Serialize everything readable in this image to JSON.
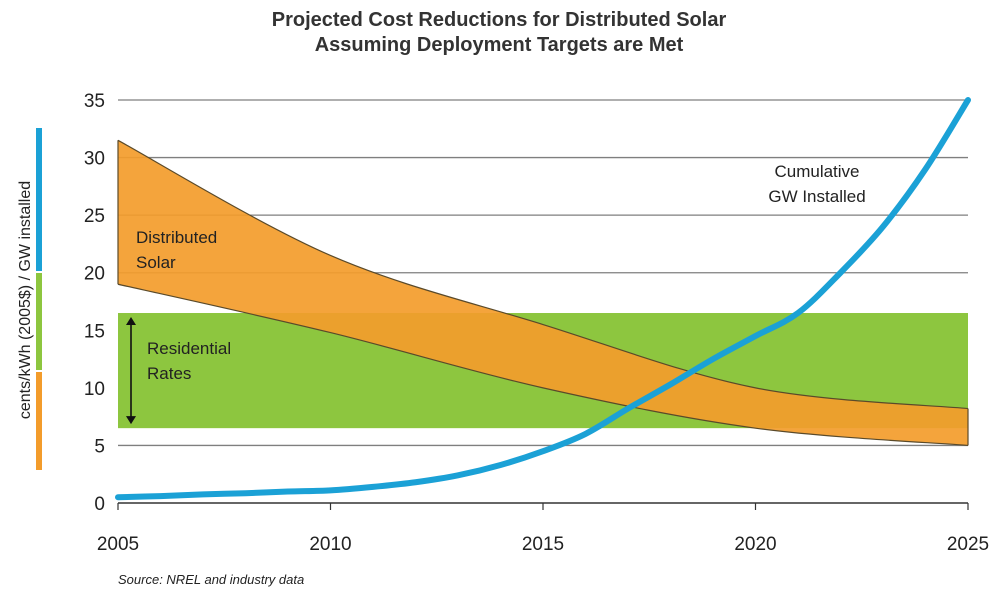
{
  "chart_data": {
    "type": "area",
    "title": [
      "Projected Cost Reductions for Distributed Solar",
      "Assuming Deployment Targets are Met"
    ],
    "ylabel": "cents/kWh (2005$) / GW installed",
    "ylabel_segment_colors": [
      "#f39c2b",
      "#8dc63f",
      "#1ba1d6"
    ],
    "xlim": [
      2005,
      2025
    ],
    "ylim": [
      0,
      35
    ],
    "x_ticks": [
      "2005",
      "2010",
      "2015",
      "2020",
      "2025"
    ],
    "y_ticks": [
      "0",
      "5",
      "10",
      "15",
      "20",
      "25",
      "30",
      "35"
    ],
    "grid": true,
    "residential_rates": {
      "label": [
        "Residential",
        "Rates"
      ],
      "range": [
        6.5,
        16.5
      ],
      "color": "#8dc63f"
    },
    "distributed_solar": {
      "label": [
        "Distributed",
        "Solar"
      ],
      "color": "#f39c2b",
      "x": [
        2005,
        2010,
        2015,
        2020,
        2025
      ],
      "upper": [
        31.5,
        21.5,
        15.5,
        10.0,
        8.2
      ],
      "lower": [
        19.0,
        14.8,
        10.0,
        6.5,
        5.0
      ]
    },
    "cumulative_gw": {
      "label": [
        "Cumulative",
        "GW Installed"
      ],
      "color": "#1ba1d6",
      "x": [
        2005,
        2006,
        2007,
        2008,
        2009,
        2010,
        2011,
        2012,
        2013,
        2014,
        2015,
        2016,
        2017,
        2018,
        2019,
        2020,
        2021,
        2022,
        2023,
        2024,
        2025
      ],
      "values": [
        0.5,
        0.6,
        0.75,
        0.85,
        1.0,
        1.1,
        1.4,
        1.8,
        2.4,
        3.3,
        4.5,
        6.0,
        8.2,
        10.3,
        12.5,
        14.5,
        16.5,
        20.0,
        24.0,
        29.0,
        35.0
      ]
    },
    "source": "Source:  NREL and industry data"
  }
}
